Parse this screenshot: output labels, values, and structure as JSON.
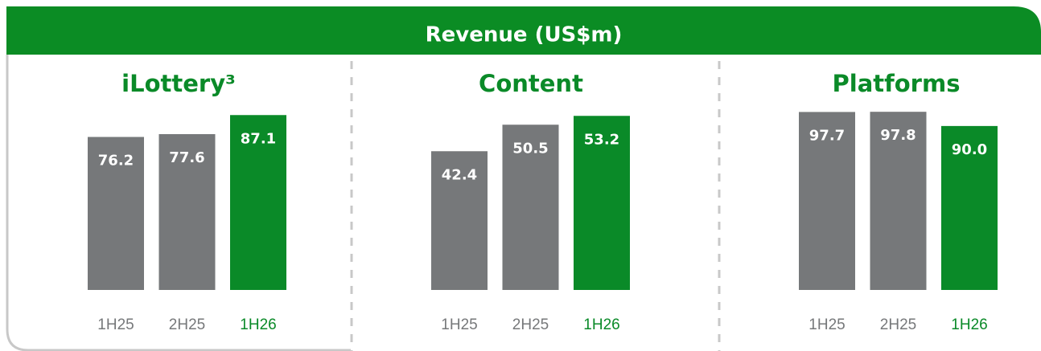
{
  "header": {
    "title": "Revenue (US$m)"
  },
  "chart_data": [
    {
      "type": "bar",
      "title": "iLottery³",
      "categories": [
        "1H25",
        "2H25",
        "1H26"
      ],
      "values": [
        76.2,
        77.6,
        87.1
      ],
      "value_labels": [
        "76.2",
        "77.6",
        "87.1"
      ],
      "colors": [
        "#76787a",
        "#76787a",
        "#0a8a28"
      ],
      "ylim": [
        0,
        88
      ]
    },
    {
      "type": "bar",
      "title": "Content",
      "categories": [
        "1H25",
        "2H25",
        "1H26"
      ],
      "values": [
        42.4,
        50.5,
        53.2
      ],
      "value_labels": [
        "42.4",
        "50.5",
        "53.2"
      ],
      "colors": [
        "#76787a",
        "#76787a",
        "#0a8a28"
      ],
      "ylim": [
        0,
        54
      ]
    },
    {
      "type": "bar",
      "title": "Platforms",
      "categories": [
        "1H25",
        "2H25",
        "1H26"
      ],
      "values": [
        97.7,
        97.8,
        90.0
      ],
      "value_labels": [
        "97.7",
        "97.8",
        "90.0"
      ],
      "colors": [
        "#76787a",
        "#76787a",
        "#0a8a28"
      ],
      "ylim": [
        0,
        97
      ]
    }
  ]
}
